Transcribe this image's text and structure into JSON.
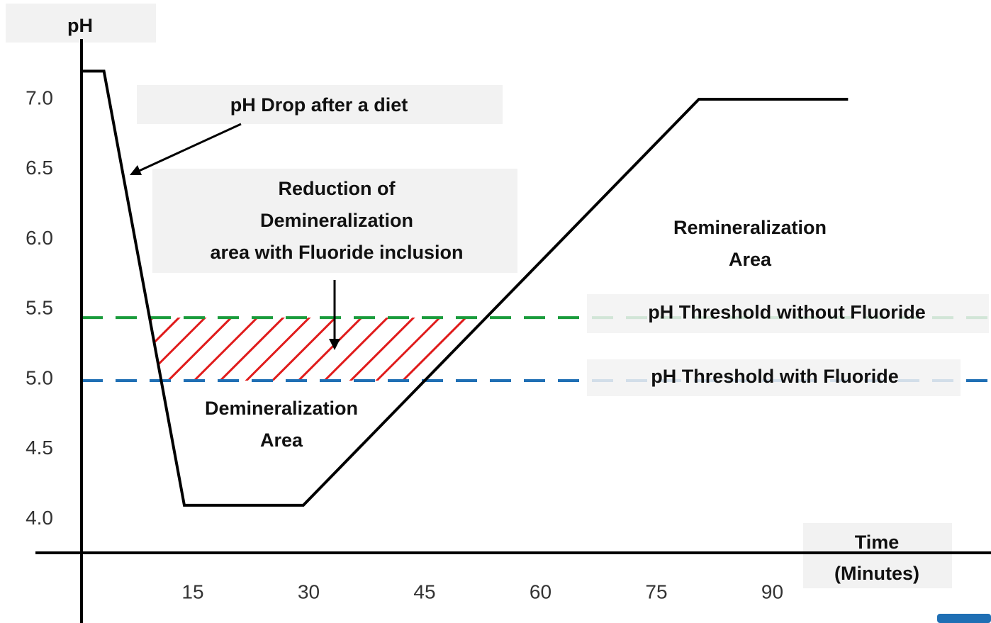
{
  "chart_data": {
    "type": "line",
    "y_label": "pH",
    "x_label": [
      "Time",
      "(Minutes)"
    ],
    "x": [
      0.6,
      3.5,
      13.9,
      29.3,
      80.5,
      99.8
    ],
    "values": [
      7.2,
      7.2,
      4.1,
      4.1,
      7.0,
      7.0
    ],
    "color": "#000000",
    "xlim": [
      0.6,
      118.3
    ],
    "ylim": [
      3.76,
      7.43
    ],
    "xticks": [
      15,
      30,
      45,
      60,
      75,
      90
    ],
    "yticks": [
      {
        "value": 4.0,
        "label": "4.0"
      },
      {
        "value": 4.5,
        "label": "4.5"
      },
      {
        "value": 5.0,
        "label": "5.0"
      },
      {
        "value": 5.5,
        "label": "5.5"
      },
      {
        "value": 6.0,
        "label": "6.0"
      },
      {
        "value": 6.5,
        "label": "6.5"
      },
      {
        "value": 7.0,
        "label": "7.0"
      }
    ],
    "thresholds": [
      {
        "label": "pH Threshold without Fluoride",
        "value": 5.44,
        "color": "#1a9c3c"
      },
      {
        "label": "pH Threshold with Fluoride",
        "value": 4.99,
        "color": "#1f6fb4"
      }
    ],
    "hatch_color": "#e01b1b",
    "annotations": [
      {
        "lines": [
          "pH Drop after a diet"
        ]
      },
      {
        "lines": [
          "Reduction of",
          "Demineralization",
          "area with Fluoride inclusion"
        ]
      },
      {
        "lines": [
          "Demineralization",
          "Area"
        ]
      },
      {
        "lines": [
          "Remineralization",
          "Area"
        ]
      }
    ]
  }
}
